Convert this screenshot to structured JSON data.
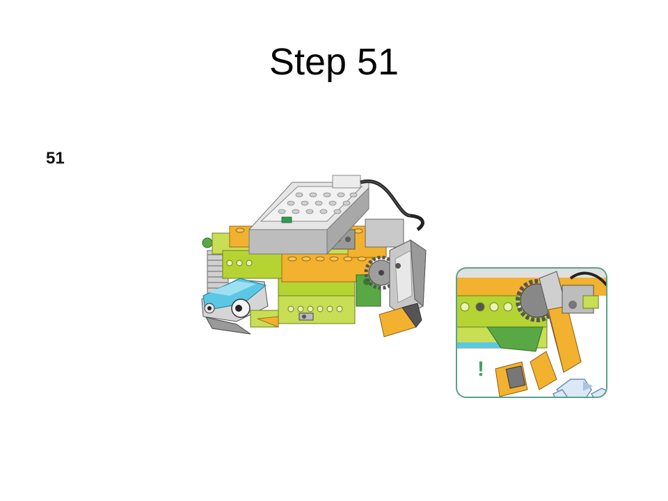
{
  "slide": {
    "title": "Step 51",
    "step_number": "51"
  },
  "colors": {
    "lime": "#b5d333",
    "light_gray": "#d8d8d8",
    "dark_gray": "#8c8c8c",
    "orange": "#f2b12e",
    "azure": "#5cc7e5",
    "green": "#59a845",
    "callout_border": "#5aa08a",
    "callout_mark": "#3ea35a"
  },
  "callout": {
    "mark": "!"
  }
}
